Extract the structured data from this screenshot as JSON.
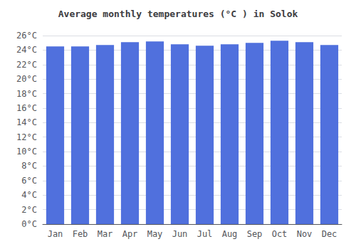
{
  "chart_data": {
    "type": "bar",
    "title": "Average monthly temperatures (°C ) in Solok",
    "categories": [
      "Jan",
      "Feb",
      "Mar",
      "Apr",
      "May",
      "Jun",
      "Jul",
      "Aug",
      "Sep",
      "Oct",
      "Nov",
      "Dec"
    ],
    "values": [
      24.5,
      24.5,
      24.7,
      25.1,
      25.2,
      24.8,
      24.6,
      24.8,
      25.0,
      25.3,
      25.1,
      24.7
    ],
    "ylim": [
      0,
      26
    ],
    "yticks": [
      {
        "value": 0,
        "label": "0°C"
      },
      {
        "value": 2,
        "label": "2°C"
      },
      {
        "value": 4,
        "label": "4°C"
      },
      {
        "value": 6,
        "label": "6°C"
      },
      {
        "value": 8,
        "label": "8°C"
      },
      {
        "value": 10,
        "label": "10°C"
      },
      {
        "value": 12,
        "label": "12°C"
      },
      {
        "value": 14,
        "label": "14°C"
      },
      {
        "value": 16,
        "label": "16°C"
      },
      {
        "value": 18,
        "label": "18°C"
      },
      {
        "value": 20,
        "label": "20°C"
      },
      {
        "value": 22,
        "label": "22°C"
      },
      {
        "value": 24,
        "label": "24°C"
      },
      {
        "value": 26,
        "label": "26°C"
      }
    ],
    "grid": true
  }
}
